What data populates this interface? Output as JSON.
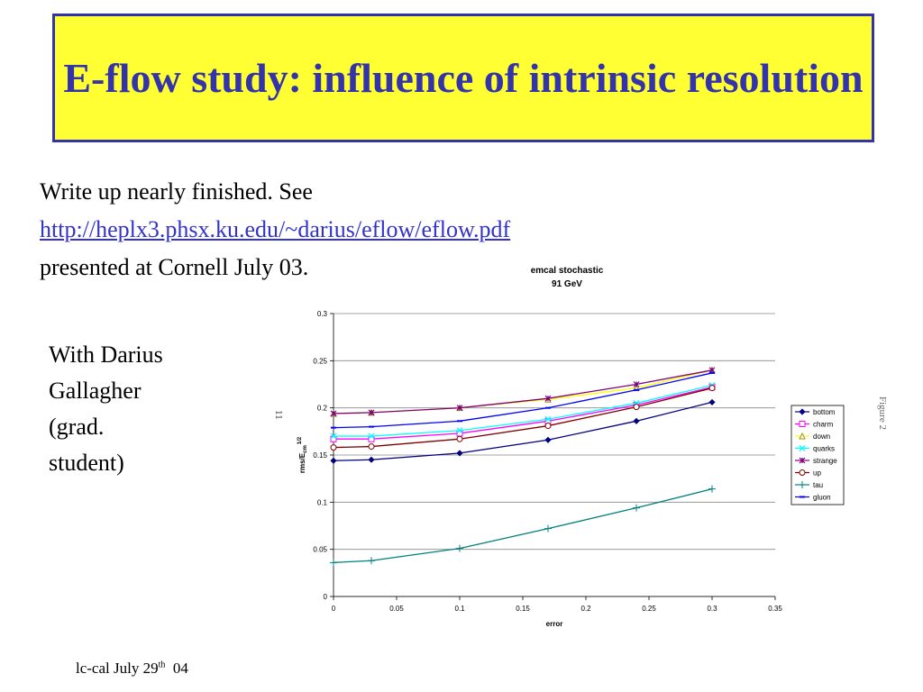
{
  "slide": {
    "title": "E-flow study: influence of intrinsic resolution",
    "line1": "Write up nearly finished. See",
    "link": "http://heplx3.phsx.ku.edu/~darius/eflow/eflow.pdf",
    "line3": "presented at Cornell July 03.",
    "side_note": [
      "With Darius",
      "Gallagher",
      "(grad.",
      "student)"
    ],
    "footer_main": "lc-cal July 29",
    "footer_sup": "th",
    "footer_tail": "04",
    "figure_label": "Figure 2",
    "page_num": "11"
  },
  "chart_data": {
    "type": "line",
    "title": [
      "emcal stochastic",
      "91 GeV"
    ],
    "xlabel": "error",
    "ylabel": "rms/E",
    "ylabel_sub": "cm",
    "ylabel_sup": "1/2",
    "xlim": [
      0,
      0.35
    ],
    "ylim": [
      0,
      0.3
    ],
    "xticks": [
      "0",
      "0.05",
      "0.1",
      "0.15",
      "0.2",
      "0.25",
      "0.3",
      "0.35"
    ],
    "yticks": [
      "0",
      "0.05",
      "0.1",
      "0.15",
      "0.2",
      "0.25",
      "0.3"
    ],
    "grid": "horizontal",
    "legend_position": "right",
    "x": [
      0,
      0.03,
      0.1,
      0.17,
      0.24,
      0.3
    ],
    "series": [
      {
        "name": "bottom",
        "marker": "diamond",
        "color": "#000080",
        "values": [
          0.144,
          0.145,
          0.152,
          0.166,
          0.186,
          0.206
        ]
      },
      {
        "name": "charm",
        "marker": "square",
        "color": "#ff00ff",
        "values": [
          0.167,
          0.167,
          0.173,
          0.186,
          0.203,
          0.222
        ]
      },
      {
        "name": "down",
        "marker": "triangle",
        "color": "#ffff00",
        "values": [
          0.194,
          0.195,
          0.2,
          0.209,
          0.221,
          0.24
        ]
      },
      {
        "name": "quarks",
        "marker": "x",
        "color": "#00ffff",
        "values": [
          0.17,
          0.17,
          0.176,
          0.188,
          0.205,
          0.224
        ]
      },
      {
        "name": "strange",
        "marker": "star",
        "color": "#800080",
        "values": [
          0.194,
          0.195,
          0.2,
          0.21,
          0.225,
          0.24
        ]
      },
      {
        "name": "up",
        "marker": "circle",
        "color": "#800000",
        "values": [
          0.158,
          0.159,
          0.167,
          0.181,
          0.201,
          0.221
        ]
      },
      {
        "name": "tau",
        "marker": "plus",
        "color": "#008080",
        "values": [
          0.036,
          0.038,
          0.051,
          0.072,
          0.094,
          0.114
        ]
      },
      {
        "name": "gluon",
        "marker": "dash",
        "color": "#0000ff",
        "values": [
          0.179,
          0.18,
          0.186,
          0.2,
          0.219,
          0.237
        ]
      }
    ]
  }
}
